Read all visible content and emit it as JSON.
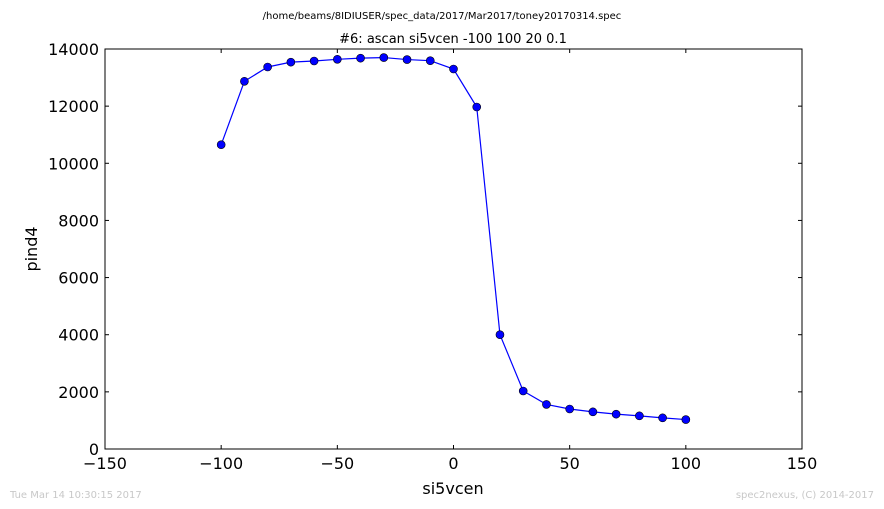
{
  "chart_data": {
    "type": "line",
    "suptitle": "/home/beams/8IDIUSER/spec_data/2017/Mar2017/toney20170314.spec",
    "title": "#6: ascan  si5vcen -100 100  20 0.1",
    "xlabel": "si5vcen",
    "ylabel": "pind4",
    "xlim": [
      -150,
      150
    ],
    "ylim": [
      0,
      14000
    ],
    "xticks": [
      -150,
      -100,
      -50,
      0,
      50,
      100,
      150
    ],
    "xtick_labels": [
      "−150",
      "−100",
      "−50",
      "0",
      "50",
      "100",
      "150"
    ],
    "yticks": [
      0,
      2000,
      4000,
      6000,
      8000,
      10000,
      12000,
      14000
    ],
    "ytick_labels": [
      "0",
      "2000",
      "4000",
      "6000",
      "8000",
      "10000",
      "12000",
      "14000"
    ],
    "grid": false,
    "color": "#0000ff",
    "marker": "circle",
    "series": [
      {
        "x": [
          -100,
          -90,
          -80,
          -70,
          -60,
          -50,
          -40,
          -30,
          -20,
          -10,
          0,
          10,
          20,
          30,
          40,
          50,
          60,
          70,
          80,
          90,
          100
        ],
        "y": [
          10650,
          12870,
          13370,
          13540,
          13580,
          13640,
          13680,
          13700,
          13630,
          13590,
          13300,
          11970,
          4000,
          2030,
          1560,
          1400,
          1300,
          1220,
          1160,
          1090,
          1030
        ]
      }
    ]
  },
  "footer": {
    "timestamp": "Tue Mar 14 10:30:15 2017",
    "credit": "spec2nexus, (C) 2014-2017"
  }
}
